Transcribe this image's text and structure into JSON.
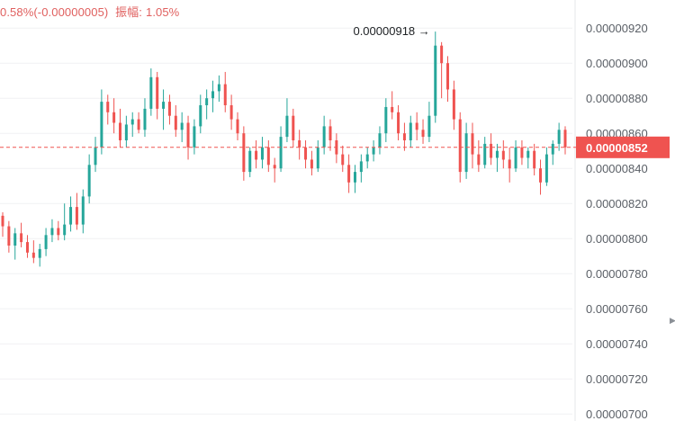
{
  "header": {
    "change_text": "0.58%(-0.00000005)",
    "amplitude_label": "振幅:",
    "amplitude_value": "1.05%"
  },
  "colors": {
    "up": "#26a69a",
    "down": "#ef5350",
    "price_line": "#ef5350",
    "axis_text": "#5a5f66",
    "grid": "#f0f1f3"
  },
  "scroll_icon": "right-arrow-icon",
  "chart_data": {
    "type": "candlestick",
    "y_axis": {
      "position": "right",
      "ticks": [
        "0.00000920",
        "0.00000900",
        "0.00000880",
        "0.00000860",
        "0.00000840",
        "0.00000820",
        "0.00000800",
        "0.00000780",
        "0.00000760",
        "0.00000740",
        "0.00000720",
        "0.00000700"
      ],
      "range": [
        6.96e-06,
        9.36e-06
      ]
    },
    "last_price": {
      "label": "0.00000852",
      "value": 8.52e-06
    },
    "peak_annotation": {
      "label": "0.00000918",
      "value": 9.18e-06,
      "arrow": "→"
    },
    "candles": [
      {
        "o": 813,
        "h": 815,
        "l": 801,
        "c": 807
      },
      {
        "o": 807,
        "h": 810,
        "l": 792,
        "c": 796
      },
      {
        "o": 796,
        "h": 806,
        "l": 788,
        "c": 803
      },
      {
        "o": 803,
        "h": 809,
        "l": 795,
        "c": 798
      },
      {
        "o": 798,
        "h": 802,
        "l": 789,
        "c": 792
      },
      {
        "o": 792,
        "h": 799,
        "l": 786,
        "c": 789
      },
      {
        "o": 789,
        "h": 797,
        "l": 784,
        "c": 794
      },
      {
        "o": 794,
        "h": 806,
        "l": 790,
        "c": 802
      },
      {
        "o": 802,
        "h": 811,
        "l": 798,
        "c": 806
      },
      {
        "o": 806,
        "h": 810,
        "l": 799,
        "c": 802
      },
      {
        "o": 802,
        "h": 820,
        "l": 799,
        "c": 808
      },
      {
        "o": 808,
        "h": 824,
        "l": 804,
        "c": 818
      },
      {
        "o": 818,
        "h": 826,
        "l": 805,
        "c": 808
      },
      {
        "o": 808,
        "h": 828,
        "l": 803,
        "c": 824
      },
      {
        "o": 824,
        "h": 848,
        "l": 820,
        "c": 842
      },
      {
        "o": 842,
        "h": 858,
        "l": 838,
        "c": 852
      },
      {
        "o": 852,
        "h": 885,
        "l": 848,
        "c": 878
      },
      {
        "o": 878,
        "h": 882,
        "l": 865,
        "c": 872
      },
      {
        "o": 872,
        "h": 880,
        "l": 860,
        "c": 866
      },
      {
        "o": 866,
        "h": 874,
        "l": 852,
        "c": 856
      },
      {
        "o": 856,
        "h": 870,
        "l": 852,
        "c": 865
      },
      {
        "o": 865,
        "h": 872,
        "l": 858,
        "c": 868
      },
      {
        "o": 868,
        "h": 872,
        "l": 860,
        "c": 862
      },
      {
        "o": 862,
        "h": 880,
        "l": 858,
        "c": 874
      },
      {
        "o": 874,
        "h": 897,
        "l": 870,
        "c": 892
      },
      {
        "o": 892,
        "h": 895,
        "l": 868,
        "c": 874
      },
      {
        "o": 874,
        "h": 885,
        "l": 862,
        "c": 878
      },
      {
        "o": 878,
        "h": 882,
        "l": 865,
        "c": 870
      },
      {
        "o": 870,
        "h": 876,
        "l": 858,
        "c": 862
      },
      {
        "o": 862,
        "h": 872,
        "l": 855,
        "c": 866
      },
      {
        "o": 866,
        "h": 870,
        "l": 845,
        "c": 852
      },
      {
        "o": 852,
        "h": 868,
        "l": 848,
        "c": 864
      },
      {
        "o": 864,
        "h": 882,
        "l": 860,
        "c": 876
      },
      {
        "o": 876,
        "h": 885,
        "l": 868,
        "c": 880
      },
      {
        "o": 880,
        "h": 890,
        "l": 872,
        "c": 884
      },
      {
        "o": 884,
        "h": 893,
        "l": 878,
        "c": 888
      },
      {
        "o": 888,
        "h": 895,
        "l": 872,
        "c": 876
      },
      {
        "o": 876,
        "h": 882,
        "l": 862,
        "c": 868
      },
      {
        "o": 868,
        "h": 872,
        "l": 856,
        "c": 860
      },
      {
        "o": 860,
        "h": 864,
        "l": 833,
        "c": 838
      },
      {
        "o": 838,
        "h": 852,
        "l": 835,
        "c": 850
      },
      {
        "o": 850,
        "h": 856,
        "l": 840,
        "c": 845
      },
      {
        "o": 845,
        "h": 858,
        "l": 840,
        "c": 852
      },
      {
        "o": 852,
        "h": 856,
        "l": 838,
        "c": 842
      },
      {
        "o": 842,
        "h": 846,
        "l": 832,
        "c": 840
      },
      {
        "o": 840,
        "h": 864,
        "l": 838,
        "c": 858
      },
      {
        "o": 858,
        "h": 880,
        "l": 855,
        "c": 870
      },
      {
        "o": 870,
        "h": 874,
        "l": 852,
        "c": 856
      },
      {
        "o": 856,
        "h": 862,
        "l": 845,
        "c": 852
      },
      {
        "o": 852,
        "h": 856,
        "l": 840,
        "c": 845
      },
      {
        "o": 845,
        "h": 850,
        "l": 836,
        "c": 840
      },
      {
        "o": 840,
        "h": 856,
        "l": 838,
        "c": 852
      },
      {
        "o": 852,
        "h": 870,
        "l": 848,
        "c": 864
      },
      {
        "o": 864,
        "h": 868,
        "l": 850,
        "c": 856
      },
      {
        "o": 856,
        "h": 860,
        "l": 843,
        "c": 848
      },
      {
        "o": 848,
        "h": 853,
        "l": 838,
        "c": 842
      },
      {
        "o": 842,
        "h": 848,
        "l": 826,
        "c": 832
      },
      {
        "o": 832,
        "h": 842,
        "l": 826,
        "c": 838
      },
      {
        "o": 838,
        "h": 848,
        "l": 832,
        "c": 844
      },
      {
        "o": 844,
        "h": 852,
        "l": 840,
        "c": 848
      },
      {
        "o": 848,
        "h": 856,
        "l": 844,
        "c": 852
      },
      {
        "o": 852,
        "h": 864,
        "l": 848,
        "c": 860
      },
      {
        "o": 860,
        "h": 880,
        "l": 855,
        "c": 875
      },
      {
        "o": 875,
        "h": 884,
        "l": 868,
        "c": 872
      },
      {
        "o": 872,
        "h": 876,
        "l": 856,
        "c": 860
      },
      {
        "o": 860,
        "h": 866,
        "l": 850,
        "c": 856
      },
      {
        "o": 856,
        "h": 870,
        "l": 852,
        "c": 866
      },
      {
        "o": 866,
        "h": 872,
        "l": 856,
        "c": 862
      },
      {
        "o": 862,
        "h": 868,
        "l": 854,
        "c": 858
      },
      {
        "o": 858,
        "h": 878,
        "l": 855,
        "c": 870
      },
      {
        "o": 870,
        "h": 918,
        "l": 866,
        "c": 910
      },
      {
        "o": 910,
        "h": 912,
        "l": 880,
        "c": 900
      },
      {
        "o": 900,
        "h": 904,
        "l": 878,
        "c": 885
      },
      {
        "o": 885,
        "h": 890,
        "l": 862,
        "c": 868
      },
      {
        "o": 868,
        "h": 872,
        "l": 832,
        "c": 838
      },
      {
        "o": 838,
        "h": 866,
        "l": 834,
        "c": 860
      },
      {
        "o": 860,
        "h": 866,
        "l": 840,
        "c": 848
      },
      {
        "o": 848,
        "h": 856,
        "l": 838,
        "c": 842
      },
      {
        "o": 842,
        "h": 858,
        "l": 840,
        "c": 854
      },
      {
        "o": 854,
        "h": 860,
        "l": 842,
        "c": 846
      },
      {
        "o": 846,
        "h": 854,
        "l": 838,
        "c": 850
      },
      {
        "o": 850,
        "h": 856,
        "l": 840,
        "c": 845
      },
      {
        "o": 845,
        "h": 852,
        "l": 832,
        "c": 840
      },
      {
        "o": 840,
        "h": 856,
        "l": 838,
        "c": 852
      },
      {
        "o": 852,
        "h": 856,
        "l": 842,
        "c": 846
      },
      {
        "o": 846,
        "h": 852,
        "l": 840,
        "c": 850
      },
      {
        "o": 850,
        "h": 854,
        "l": 836,
        "c": 840
      },
      {
        "o": 840,
        "h": 845,
        "l": 825,
        "c": 832
      },
      {
        "o": 832,
        "h": 852,
        "l": 830,
        "c": 848
      },
      {
        "o": 848,
        "h": 856,
        "l": 842,
        "c": 854
      },
      {
        "o": 854,
        "h": 866,
        "l": 850,
        "c": 862
      },
      {
        "o": 862,
        "h": 864,
        "l": 848,
        "c": 852
      }
    ]
  }
}
